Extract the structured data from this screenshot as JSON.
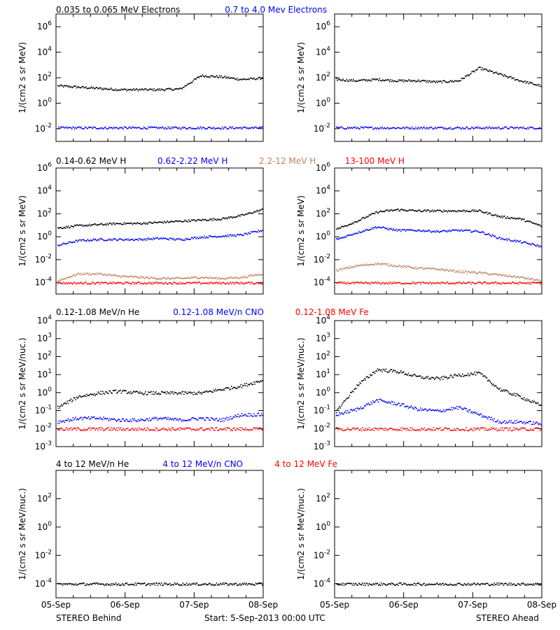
{
  "colors": {
    "black": "#000000",
    "blue": "#0000ff",
    "tan": "#c08060",
    "red": "#ff0000"
  },
  "footer": {
    "left": "STEREO Behind",
    "start": "Start:  5-Sep-2013 00:00 UTC",
    "right": "STEREO Ahead"
  },
  "chart_data": [
    {
      "type": "scatter",
      "row": 1,
      "legend": [
        {
          "text": "0.035 to 0.065 MeV Electrons",
          "color": "#000000"
        },
        {
          "text": "0.7 to 4.0 Mev Electrons",
          "color": "#0000ff"
        }
      ],
      "ylabel": "1/(cm2 s sr MeV)",
      "ylim_log10": [
        -3,
        7
      ],
      "yticks": [
        -2,
        0,
        2,
        4,
        6
      ],
      "xlabels": [
        "05-Sep",
        "06-Sep",
        "07-Sep",
        "08-Sep"
      ],
      "panels": [
        {
          "side": "STEREO Behind",
          "series": [
            {
              "color": "#000000",
              "log10_y": [
                1.4,
                1.3,
                1.2,
                1.1,
                1.1,
                1.1,
                1.15,
                2.2,
                2.1,
                1.9,
                2.0
              ]
            },
            {
              "color": "#0000ff",
              "log10_y": [
                -1.9,
                -1.9,
                -1.9,
                -1.9,
                -1.9,
                -1.9,
                -1.9,
                -1.9,
                -1.9,
                -1.9,
                -1.9
              ]
            }
          ]
        },
        {
          "side": "STEREO Ahead",
          "series": [
            {
              "color": "#000000",
              "log10_y": [
                1.9,
                1.8,
                1.9,
                1.8,
                1.8,
                1.7,
                1.8,
                2.8,
                2.3,
                1.8,
                1.4
              ]
            },
            {
              "color": "#0000ff",
              "log10_y": [
                -1.9,
                -1.9,
                -1.9,
                -1.9,
                -1.9,
                -1.9,
                -1.9,
                -1.9,
                -1.9,
                -1.9,
                -1.9
              ]
            }
          ]
        }
      ]
    },
    {
      "type": "scatter",
      "row": 2,
      "legend": [
        {
          "text": "0.14-0.62 MeV H",
          "color": "#000000"
        },
        {
          "text": "0.62-2.22 MeV H",
          "color": "#0000ff"
        },
        {
          "text": "2.2-12 MeV H",
          "color": "#c08060"
        },
        {
          "text": "13-100 MeV H",
          "color": "#ff0000"
        }
      ],
      "ylabel": "1/(cm2 s sr MeV)",
      "ylim_log10": [
        -5,
        6
      ],
      "yticks": [
        -4,
        -2,
        0,
        2,
        4,
        6
      ],
      "xlabels": [
        "05-Sep",
        "06-Sep",
        "07-Sep",
        "08-Sep"
      ],
      "panels": [
        {
          "side": "STEREO Behind",
          "series": [
            {
              "color": "#000000",
              "log10_y": [
                0.8,
                1.0,
                1.1,
                1.2,
                1.2,
                1.3,
                1.4,
                1.5,
                1.6,
                1.9,
                2.4
              ]
            },
            {
              "color": "#0000ff",
              "log10_y": [
                -0.7,
                -0.3,
                -0.2,
                -0.2,
                -0.2,
                -0.1,
                -0.2,
                0,
                0.1,
                0.2,
                0.6
              ]
            },
            {
              "color": "#c08060",
              "log10_y": [
                -3.8,
                -3.2,
                -3.2,
                -3.4,
                -3.5,
                -3.6,
                -3.6,
                -3.5,
                -3.6,
                -3.5,
                -3.2
              ]
            },
            {
              "color": "#ff0000",
              "log10_y": [
                -4.0,
                -4.0,
                -4.0,
                -4.0,
                -4.0,
                -4.0,
                -4.0,
                -4.0,
                -4.0,
                -4.0,
                -4.0
              ]
            }
          ]
        },
        {
          "side": "STEREO Ahead",
          "series": [
            {
              "color": "#000000",
              "log10_y": [
                0.7,
                1.4,
                2.2,
                2.4,
                2.3,
                2.3,
                2.3,
                2.3,
                1.8,
                1.6,
                1.0
              ]
            },
            {
              "color": "#0000ff",
              "log10_y": [
                -0.2,
                0.4,
                0.9,
                0.6,
                0.6,
                0.5,
                0.6,
                0.5,
                -0.1,
                -0.4,
                -0.8
              ]
            },
            {
              "color": "#c08060",
              "log10_y": [
                -2.9,
                -2.5,
                -2.3,
                -2.5,
                -2.7,
                -2.8,
                -3.0,
                -3.1,
                -3.3,
                -3.5,
                -3.8
              ]
            },
            {
              "color": "#ff0000",
              "log10_y": [
                -4.0,
                -4.0,
                -4.0,
                -4.0,
                -4.0,
                -4.0,
                -4.0,
                -4.0,
                -4.0,
                -4.0,
                -4.0
              ]
            }
          ]
        }
      ]
    },
    {
      "type": "scatter",
      "row": 3,
      "legend": [
        {
          "text": "0.12-1.08 MeV/n He",
          "color": "#000000"
        },
        {
          "text": "0.12-1.08 MeV/n CNO",
          "color": "#0000ff"
        },
        {
          "text": "0.12-1.08 MeV Fe",
          "color": "#ff0000"
        }
      ],
      "ylabel": "1/(cm2 s sr MeV/nuc.)",
      "ylim_log10": [
        -3,
        4
      ],
      "yticks": [
        -3,
        -2,
        -1,
        0,
        1,
        2,
        3,
        4
      ],
      "xlabels": [
        "05-Sep",
        "06-Sep",
        "07-Sep",
        "08-Sep"
      ],
      "panels": [
        {
          "side": "STEREO Behind",
          "series": [
            {
              "color": "#000000",
              "log10_y": [
                -0.8,
                -0.2,
                0,
                0.1,
                0,
                0,
                0,
                0,
                0.2,
                0.4,
                0.7
              ]
            },
            {
              "color": "#0000ff",
              "log10_y": [
                -1.6,
                -1.4,
                -1.4,
                -1.5,
                -1.5,
                -1.4,
                -1.5,
                -1.4,
                -1.5,
                -1.2,
                -1.2
              ]
            },
            {
              "color": "#ff0000",
              "log10_y": [
                -2.0,
                -2.0,
                -2.0,
                -2.0,
                -2.0,
                -2.0,
                -2.0,
                -2.0,
                -2.0,
                -2.0,
                -2.0
              ]
            }
          ]
        },
        {
          "side": "STEREO Ahead",
          "series": [
            {
              "color": "#000000",
              "log10_y": [
                -1.0,
                0.4,
                1.3,
                1.2,
                0.9,
                0.8,
                1.0,
                1.1,
                0.2,
                -0.2,
                -0.7
              ]
            },
            {
              "color": "#0000ff",
              "log10_y": [
                -1.2,
                -0.9,
                -0.4,
                -0.6,
                -0.9,
                -1.0,
                -0.8,
                -1.2,
                -1.6,
                -1.6,
                -1.7
              ]
            },
            {
              "color": "#ff0000",
              "log10_y": [
                -2.0,
                -2.0,
                -2.0,
                -2.0,
                -2.0,
                -2.0,
                -2.0,
                -2.0,
                -2.0,
                -2.0,
                -2.0
              ]
            }
          ]
        }
      ]
    },
    {
      "type": "scatter",
      "row": 4,
      "legend": [
        {
          "text": "4 to 12 MeV/n He",
          "color": "#000000"
        },
        {
          "text": "4 to 12 MeV/n CNO",
          "color": "#0000ff"
        },
        {
          "text": "4 to 12 MeV Fe",
          "color": "#ff0000"
        }
      ],
      "ylabel": "1/(cm2 s sr MeV/nuc.)",
      "ylim_log10": [
        -5,
        4
      ],
      "yticks": [
        -4,
        -2,
        0,
        2
      ],
      "xlabels": [
        "05-Sep",
        "06-Sep",
        "07-Sep",
        "08-Sep"
      ],
      "panels": [
        {
          "side": "STEREO Behind",
          "series": [
            {
              "color": "#000000",
              "log10_y": [
                -4.0,
                -4.0,
                -4.0,
                -4.0,
                -4.0,
                -4.0,
                -4.0,
                -4.0,
                -4.0,
                -4.0,
                -4.0
              ]
            }
          ]
        },
        {
          "side": "STEREO Ahead",
          "series": [
            {
              "color": "#000000",
              "log10_y": [
                -4.0,
                -4.0,
                -4.0,
                -4.0,
                -4.0,
                -4.0,
                -4.0,
                -4.0,
                -4.0,
                -4.0,
                -4.0
              ]
            }
          ]
        }
      ]
    }
  ]
}
